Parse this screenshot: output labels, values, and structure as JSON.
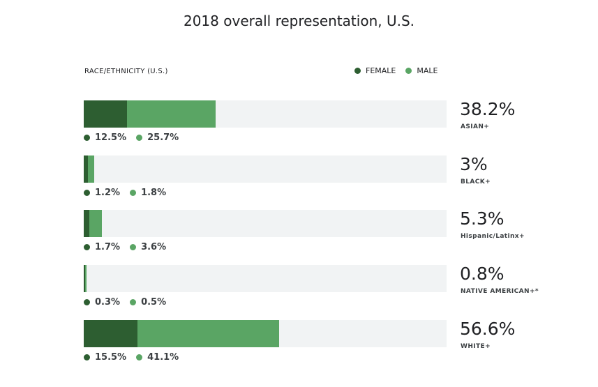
{
  "chart_data": {
    "type": "bar",
    "orientation": "horizontal",
    "stacked": true,
    "title": "2018 overall representation, U.S.",
    "axis_label": "RACE/ETHNICITY  (U.S.)",
    "legend": [
      "FEMALE",
      "MALE"
    ],
    "legend_position": "top-right",
    "xlim": [
      0,
      105
    ],
    "colors": {
      "female": "#2d5e31",
      "male": "#5aa564",
      "track": "#f1f3f4"
    },
    "categories": [
      "ASIAN+",
      "BLACK+",
      "Hispanic/Latinx+",
      "NATIVE AMERICAN+*",
      "WHITE+"
    ],
    "totals": [
      "38.2%",
      "3%",
      "5.3%",
      "0.8%",
      "56.6%"
    ],
    "series": [
      {
        "name": "FEMALE",
        "values": [
          12.5,
          1.2,
          1.7,
          0.3,
          15.5
        ],
        "labels": [
          "12.5%",
          "1.2%",
          "1.7%",
          "0.3%",
          "15.5%"
        ]
      },
      {
        "name": "MALE",
        "values": [
          25.7,
          1.8,
          3.6,
          0.5,
          41.1
        ],
        "labels": [
          "25.7%",
          "1.8%",
          "3.6%",
          "0.5%",
          "41.1%"
        ]
      }
    ]
  }
}
